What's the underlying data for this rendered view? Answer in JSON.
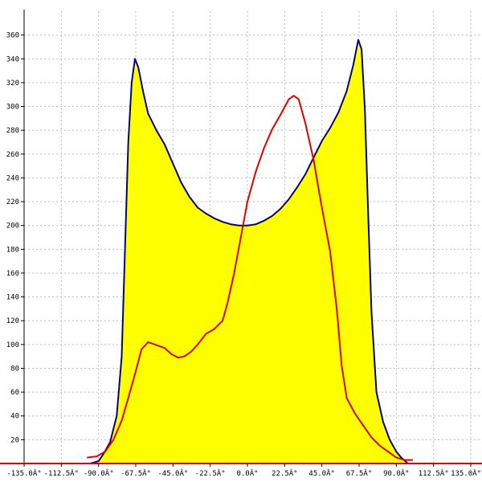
{
  "chart_data": {
    "type": "area",
    "title": "",
    "xlabel": "",
    "ylabel": "",
    "xlim": [
      -135,
      135
    ],
    "ylim": [
      0,
      380
    ],
    "grid": true,
    "x_ticks": [
      -135,
      -112.5,
      -90,
      -67.5,
      -45,
      -22.5,
      0,
      22.5,
      45,
      67.5,
      90,
      112.5,
      135
    ],
    "x_tick_labels": [
      "-135.0Â°",
      "-112.5Â°",
      "-90.0Â°",
      "-67.5Â°",
      "-45.0Â°",
      "-22.5Â°",
      "0.0Â°",
      "22.5Â°",
      "45.0Â°",
      "67.5Â°",
      "90.0Â°",
      "112.5Â°",
      "135.0Â°"
    ],
    "y_ticks": [
      20,
      40,
      60,
      80,
      100,
      120,
      140,
      160,
      180,
      200,
      220,
      240,
      260,
      280,
      300,
      320,
      340,
      360
    ],
    "y_tick_labels": [
      "20",
      "40",
      "60",
      "80",
      "100",
      "120",
      "140",
      "160",
      "180",
      "200",
      "220",
      "240",
      "260",
      "280",
      "300",
      "320",
      "340",
      "360"
    ],
    "colors": {
      "fill": "#ffff00",
      "outline": "#000099",
      "line": "#dd0000",
      "grid": "#bbbbbb",
      "axis": "#000000",
      "baseline": "#dd0000"
    },
    "series": [
      {
        "style": "filled",
        "points": [
          [
            -95,
            0
          ],
          [
            -90,
            2
          ],
          [
            -87,
            8
          ],
          [
            -83,
            18
          ],
          [
            -79,
            40
          ],
          [
            -76,
            90
          ],
          [
            -74,
            180
          ],
          [
            -72,
            270
          ],
          [
            -70,
            320
          ],
          [
            -68,
            340
          ],
          [
            -66,
            333
          ],
          [
            -63,
            312
          ],
          [
            -60,
            294
          ],
          [
            -55,
            280
          ],
          [
            -50,
            268
          ],
          [
            -45,
            252
          ],
          [
            -40,
            236
          ],
          [
            -35,
            224
          ],
          [
            -30,
            215
          ],
          [
            -25,
            210
          ],
          [
            -20,
            206
          ],
          [
            -15,
            203
          ],
          [
            -10,
            201
          ],
          [
            -5,
            200
          ],
          [
            0,
            200
          ],
          [
            5,
            201
          ],
          [
            10,
            204
          ],
          [
            15,
            208
          ],
          [
            20,
            214
          ],
          [
            25,
            222
          ],
          [
            30,
            232
          ],
          [
            35,
            243
          ],
          [
            40,
            257
          ],
          [
            45,
            271
          ],
          [
            50,
            282
          ],
          [
            55,
            295
          ],
          [
            60,
            313
          ],
          [
            64,
            335
          ],
          [
            67,
            356
          ],
          [
            69,
            348
          ],
          [
            71,
            298
          ],
          [
            73,
            210
          ],
          [
            75,
            128
          ],
          [
            78,
            60
          ],
          [
            82,
            35
          ],
          [
            86,
            20
          ],
          [
            90,
            10
          ],
          [
            93,
            5
          ],
          [
            97,
            0
          ]
        ]
      },
      {
        "style": "line",
        "points": [
          [
            -97,
            5
          ],
          [
            -91,
            6
          ],
          [
            -86,
            10
          ],
          [
            -81,
            20
          ],
          [
            -76,
            36
          ],
          [
            -72,
            55
          ],
          [
            -68,
            75
          ],
          [
            -64,
            96
          ],
          [
            -60,
            102
          ],
          [
            -56,
            100
          ],
          [
            -50,
            97
          ],
          [
            -46,
            92
          ],
          [
            -42,
            89
          ],
          [
            -38,
            90
          ],
          [
            -34,
            94
          ],
          [
            -30,
            100
          ],
          [
            -25,
            109
          ],
          [
            -20,
            113
          ],
          [
            -15,
            120
          ],
          [
            -12,
            135
          ],
          [
            -8,
            160
          ],
          [
            -4,
            190
          ],
          [
            0,
            220
          ],
          [
            5,
            245
          ],
          [
            10,
            265
          ],
          [
            15,
            281
          ],
          [
            20,
            293
          ],
          [
            25,
            306
          ],
          [
            28,
            309
          ],
          [
            31,
            306
          ],
          [
            35,
            286
          ],
          [
            40,
            255
          ],
          [
            45,
            215
          ],
          [
            50,
            178
          ],
          [
            54,
            130
          ],
          [
            57,
            82
          ],
          [
            60,
            55
          ],
          [
            65,
            42
          ],
          [
            70,
            32
          ],
          [
            75,
            22
          ],
          [
            80,
            15
          ],
          [
            85,
            10
          ],
          [
            90,
            5
          ],
          [
            95,
            3
          ],
          [
            100,
            3
          ]
        ]
      }
    ]
  }
}
